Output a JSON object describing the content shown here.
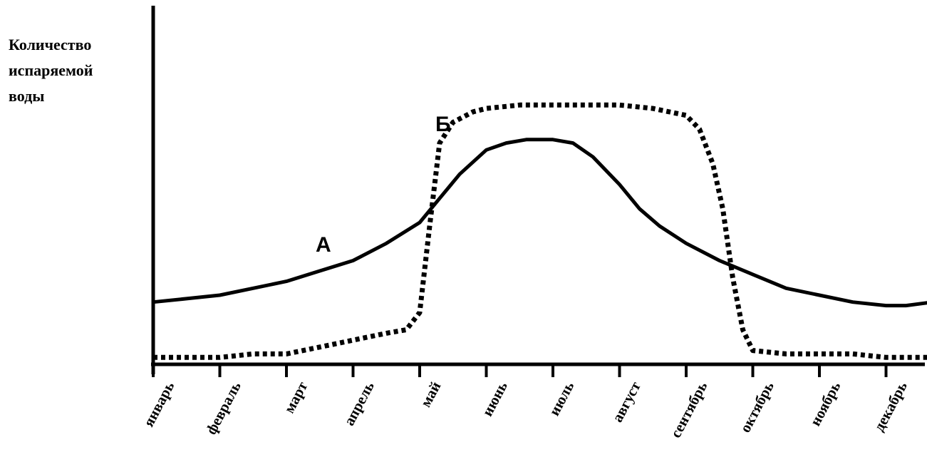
{
  "chart_data": {
    "type": "line",
    "ylabel_lines": [
      "Количество",
      "испаряемой",
      "воды"
    ],
    "xlabel": "",
    "categories": [
      "январь",
      "февраль",
      "март",
      "апрель",
      "май",
      "июнь",
      "июль",
      "август",
      "сентябрь",
      "октябрь",
      "ноябрь",
      "декабрь"
    ],
    "ylim": [
      0,
      100
    ],
    "grid": false,
    "legend": "none",
    "series": [
      {
        "name": "А",
        "style": "solid",
        "color": "#000000",
        "x": [
          0,
          0.5,
          1,
          1.5,
          2,
          2.5,
          3,
          3.5,
          4,
          4.3,
          4.6,
          5,
          5.3,
          5.6,
          6,
          6.3,
          6.6,
          7,
          7.3,
          7.6,
          8,
          8.5,
          9,
          9.5,
          10,
          10.5,
          11,
          11.3,
          11.7
        ],
        "values": [
          18,
          19,
          20,
          22,
          24,
          27,
          30,
          35,
          41,
          48,
          55,
          62,
          64,
          65,
          65,
          64,
          60,
          52,
          45,
          40,
          35,
          30,
          26,
          22,
          20,
          18,
          17,
          17,
          18
        ]
      },
      {
        "name": "Б",
        "style": "dotted",
        "color": "#000000",
        "x": [
          0,
          0.5,
          1,
          1.5,
          2,
          2.5,
          3,
          3.5,
          3.8,
          4,
          4.15,
          4.3,
          4.5,
          4.8,
          5,
          5.5,
          6,
          6.5,
          7,
          7.5,
          8,
          8.2,
          8.4,
          8.55,
          8.7,
          8.85,
          9,
          9.5,
          10,
          10.5,
          11,
          11.7
        ],
        "values": [
          2,
          2,
          2,
          3,
          3,
          5,
          7,
          9,
          10,
          15,
          40,
          64,
          70,
          73,
          74,
          75,
          75,
          75,
          75,
          74,
          72,
          68,
          58,
          45,
          25,
          10,
          4,
          3,
          3,
          3,
          2,
          2
        ]
      }
    ],
    "series_labels": [
      "А",
      "Б"
    ]
  }
}
